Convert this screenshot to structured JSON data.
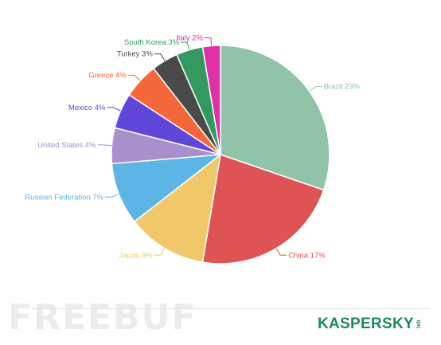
{
  "chart_data": {
    "type": "pie",
    "title": "",
    "slices": [
      {
        "label": "Brazil 23%",
        "value": 23,
        "color": "#90c3a8"
      },
      {
        "label": "China 17%",
        "value": 17,
        "color": "#de5354"
      },
      {
        "label": "Japan 9%",
        "value": 9,
        "color": "#f0c86a"
      },
      {
        "label": "Russian Federation 7%",
        "value": 7,
        "color": "#5db5e5"
      },
      {
        "label": "United States 4%",
        "value": 4,
        "color": "#a98fcb"
      },
      {
        "label": "Mexico 4%",
        "value": 4,
        "color": "#6046d9"
      },
      {
        "label": "Greece 4%",
        "value": 4,
        "color": "#f3673b"
      },
      {
        "label": "Turkey 3%",
        "value": 3,
        "color": "#4a4a4a"
      },
      {
        "label": "South Korea 3%",
        "value": 3,
        "color": "#329a5e"
      },
      {
        "label": "Italy 2%",
        "value": 2,
        "color": "#e030a8"
      }
    ]
  },
  "watermark": "FREEBUF",
  "brand": {
    "name": "KASPERSKY",
    "sub": "lab"
  }
}
